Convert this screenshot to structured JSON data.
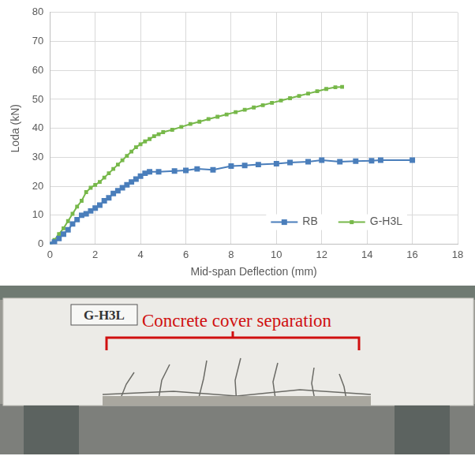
{
  "chart_data": {
    "type": "line",
    "x_label": "Mid-span Deflection (mm)",
    "y_label": "Loda (kN)",
    "xlim": [
      0,
      18
    ],
    "xticks": [
      0,
      2,
      4,
      6,
      8,
      10,
      12,
      14,
      16,
      18
    ],
    "ylim": [
      0,
      80
    ],
    "yticks": [
      0,
      10,
      20,
      30,
      40,
      50,
      60,
      70,
      80
    ],
    "grid": true,
    "legend": "lower right",
    "series": [
      {
        "name": "RB",
        "color": "#4a7ebb",
        "marker": "square",
        "line_style": "solid",
        "x": [
          0,
          0.2,
          0.4,
          0.6,
          0.8,
          1.0,
          1.2,
          1.4,
          1.6,
          1.8,
          2.0,
          2.2,
          2.4,
          2.6,
          2.8,
          3.0,
          3.2,
          3.4,
          3.6,
          3.8,
          4.0,
          4.2,
          4.4,
          4.8,
          5.5,
          6.0,
          6.5,
          7.2,
          8.0,
          8.6,
          9.2,
          10.0,
          10.6,
          11.4,
          12.0,
          12.8,
          13.5,
          14.2,
          14.6,
          16.0
        ],
        "values": [
          0,
          0.8,
          2,
          3.5,
          5,
          7,
          8.5,
          10,
          10.5,
          11.5,
          12.5,
          13.5,
          15,
          16,
          17.5,
          18.5,
          19.5,
          20.5,
          21.5,
          22.5,
          23.5,
          24.5,
          25,
          25,
          25.3,
          25.5,
          26,
          25.7,
          27,
          27.2,
          27.5,
          27.8,
          28.2,
          28.5,
          29,
          28.5,
          28.7,
          28.8,
          29,
          29
        ]
      },
      {
        "name": "G-H3L",
        "color": "#77b84a",
        "marker": "square",
        "line_style": "solid",
        "x": [
          0,
          0.2,
          0.4,
          0.6,
          0.8,
          1.0,
          1.2,
          1.4,
          1.6,
          1.8,
          2.0,
          2.2,
          2.4,
          2.6,
          2.8,
          3.0,
          3.2,
          3.4,
          3.6,
          3.8,
          4.0,
          4.2,
          4.4,
          4.6,
          4.8,
          5.0,
          5.4,
          5.8,
          6.2,
          6.6,
          7.0,
          7.4,
          7.8,
          8.2,
          8.6,
          9.0,
          9.4,
          9.8,
          10.2,
          10.6,
          11.0,
          11.4,
          11.8,
          12.2,
          12.6,
          12.9
        ],
        "values": [
          0,
          1.5,
          3.5,
          5.5,
          8,
          10.5,
          13,
          15,
          18,
          19.5,
          20.5,
          21.5,
          23,
          24.5,
          26,
          27.5,
          29,
          30.5,
          32,
          33.5,
          34.5,
          35.5,
          36.3,
          37.3,
          38,
          38.7,
          39.5,
          40.5,
          41.5,
          42.3,
          43.2,
          44,
          44.8,
          45.6,
          46.4,
          47.2,
          48,
          48.8,
          49.6,
          50.4,
          51.2,
          52,
          52.8,
          53.6,
          54.2,
          54.3
        ]
      }
    ]
  },
  "photo": {
    "label": "G-H3L",
    "annotation": "Concrete cover separation"
  }
}
